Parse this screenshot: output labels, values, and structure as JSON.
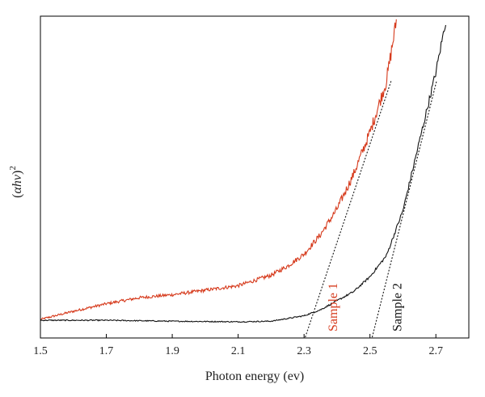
{
  "chart_data": {
    "type": "line",
    "xlabel": "Photon energy (ev)",
    "ylabel": "(αhν)²",
    "xlim": [
      1.5,
      2.8
    ],
    "ylim": [
      0,
      100
    ],
    "y_tick_labels": "none",
    "x_ticks": [
      1.5,
      1.7,
      1.9,
      2.1,
      2.3,
      2.5,
      2.7
    ],
    "x_tick_labels": [
      "1.5",
      "1.7",
      "1.9",
      "2.1",
      "2.3",
      "2.5",
      "2.7"
    ],
    "colors": {
      "sample1": "#d63a1c",
      "sample2": "#111111",
      "fit": "#222222"
    },
    "series": [
      {
        "name": "Sample 1",
        "color": "#d63a1c",
        "noise": 0.6,
        "x": [
          1.5,
          1.6,
          1.7,
          1.8,
          1.9,
          2.0,
          2.1,
          2.2,
          2.25,
          2.3,
          2.35,
          2.4,
          2.45,
          2.5,
          2.55,
          2.58
        ],
        "y": [
          0.8,
          3.5,
          6.0,
          8.0,
          9.0,
          10.5,
          12.0,
          15.5,
          18.5,
          22.5,
          29.0,
          37.5,
          49.0,
          63.0,
          80.0,
          100.0
        ]
      },
      {
        "name": "Sample 2",
        "color": "#111111",
        "noise": 0.35,
        "x": [
          1.5,
          1.7,
          1.9,
          2.1,
          2.2,
          2.3,
          2.35,
          2.4,
          2.45,
          2.5,
          2.55,
          2.6,
          2.65,
          2.7,
          2.73
        ],
        "y": [
          0.5,
          0.5,
          0.2,
          0.0,
          0.2,
          2.0,
          4.0,
          7.0,
          10.0,
          15.0,
          22.0,
          37.0,
          60.0,
          83.0,
          100.0
        ]
      }
    ],
    "fit_lines": [
      {
        "series": "Sample 1",
        "x": [
          2.304,
          2.564
        ],
        "y": [
          -5,
          80
        ]
      },
      {
        "series": "Sample 2",
        "x": [
          2.507,
          2.702
        ],
        "y": [
          -5,
          80
        ]
      }
    ],
    "annotations": [
      {
        "text": "Sample 1",
        "x": 2.4,
        "y": 2,
        "color": "#d63a1c",
        "rotation": -90
      },
      {
        "text": "Sample 2",
        "x": 2.595,
        "y": 2,
        "color": "#111111",
        "rotation": -90
      }
    ]
  }
}
